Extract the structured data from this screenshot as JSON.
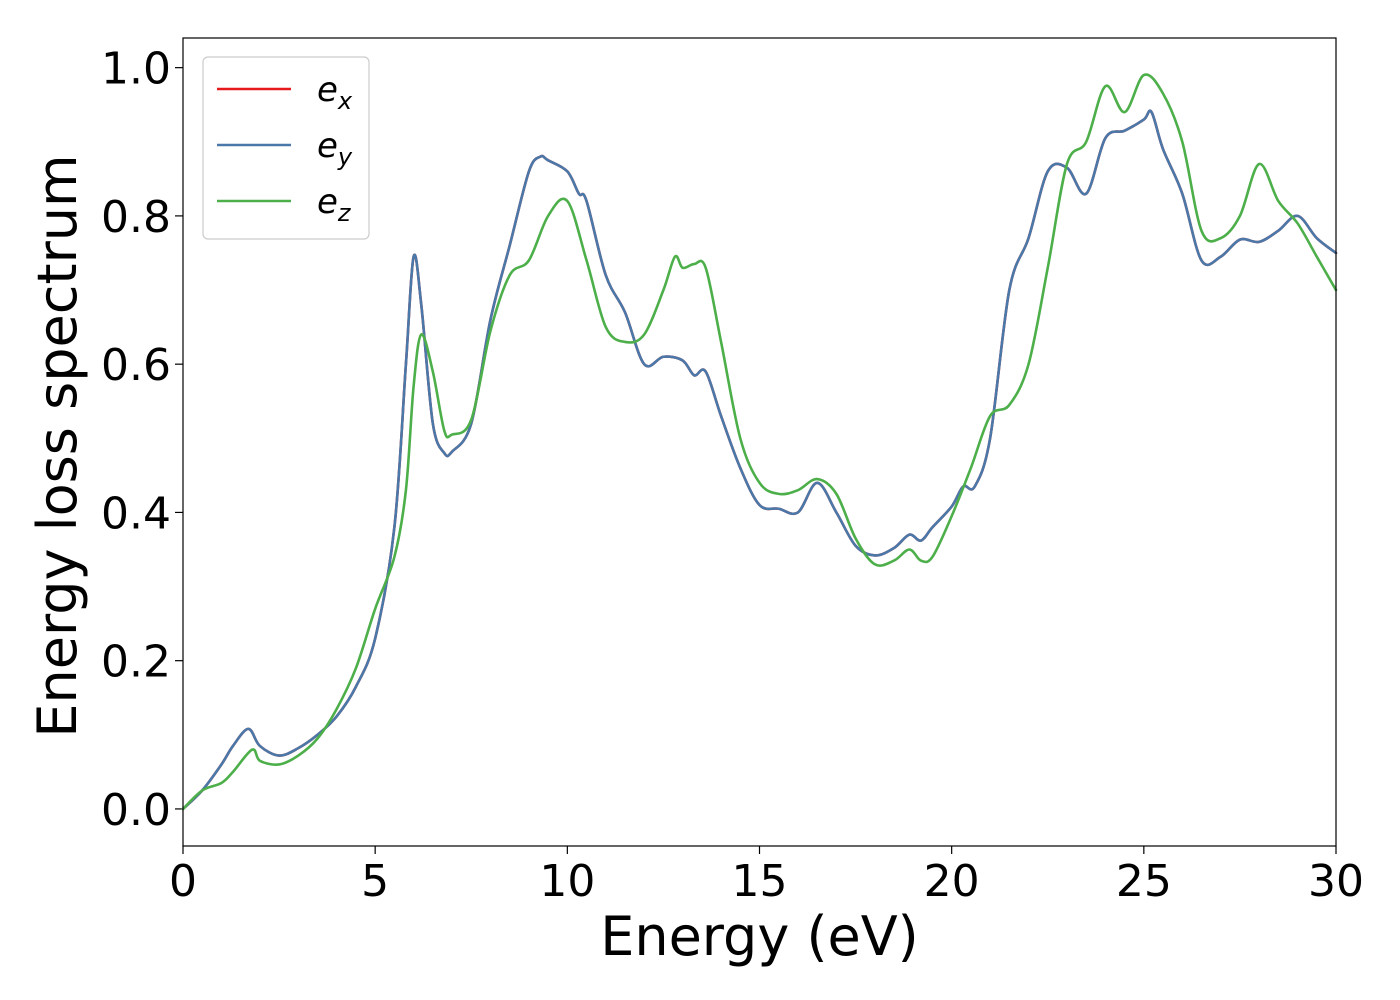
{
  "chart_data": {
    "type": "line",
    "xlabel": "Energy (eV)",
    "ylabel": "Energy loss spectrum",
    "xlim": [
      0,
      30
    ],
    "ylim": [
      -0.05,
      1.04
    ],
    "xticks": [
      "0",
      "5",
      "10",
      "15",
      "20",
      "25",
      "30"
    ],
    "yticks": [
      "0.0",
      "0.2",
      "0.4",
      "0.6",
      "0.8",
      "1.0"
    ],
    "grid": false,
    "legend_position": "top-left",
    "series": [
      {
        "name": "e_x",
        "legend": {
          "base": "e",
          "sub": "x"
        },
        "color": "#e41a1c",
        "x": [
          0,
          0.5,
          1.0,
          1.3,
          1.7,
          2.0,
          2.5,
          3.0,
          3.5,
          4.0,
          4.5,
          5.0,
          5.5,
          5.8,
          6.0,
          6.2,
          6.5,
          6.8,
          7.0,
          7.5,
          8.0,
          8.5,
          9.0,
          9.3,
          9.5,
          10.0,
          10.3,
          10.5,
          11.0,
          11.5,
          12.0,
          12.5,
          13.0,
          13.3,
          13.6,
          14.0,
          14.5,
          15.0,
          15.5,
          16.0,
          16.5,
          17.0,
          17.5,
          18.0,
          18.5,
          18.9,
          19.2,
          19.5,
          20.0,
          20.3,
          20.6,
          21.0,
          21.5,
          22.0,
          22.5,
          23.0,
          23.5,
          24.0,
          24.5,
          25.0,
          25.2,
          25.5,
          26.0,
          26.5,
          27.0,
          27.5,
          28.0,
          28.5,
          29.0,
          29.5,
          30.0
        ],
        "y": [
          0.0,
          0.025,
          0.06,
          0.085,
          0.108,
          0.085,
          0.072,
          0.082,
          0.1,
          0.125,
          0.165,
          0.23,
          0.38,
          0.6,
          0.745,
          0.68,
          0.52,
          0.48,
          0.482,
          0.52,
          0.66,
          0.76,
          0.86,
          0.88,
          0.875,
          0.86,
          0.83,
          0.82,
          0.72,
          0.67,
          0.6,
          0.61,
          0.605,
          0.585,
          0.59,
          0.53,
          0.46,
          0.41,
          0.405,
          0.4,
          0.44,
          0.4,
          0.355,
          0.342,
          0.352,
          0.37,
          0.362,
          0.38,
          0.408,
          0.435,
          0.435,
          0.5,
          0.7,
          0.77,
          0.86,
          0.865,
          0.83,
          0.905,
          0.915,
          0.93,
          0.94,
          0.89,
          0.83,
          0.74,
          0.745,
          0.768,
          0.765,
          0.78,
          0.8,
          0.77,
          0.75
        ]
      },
      {
        "name": "e_y",
        "legend": {
          "base": "e",
          "sub": "y"
        },
        "color": "#4a78a8",
        "x": [
          0,
          0.5,
          1.0,
          1.3,
          1.7,
          2.0,
          2.5,
          3.0,
          3.5,
          4.0,
          4.5,
          5.0,
          5.5,
          5.8,
          6.0,
          6.2,
          6.5,
          6.8,
          7.0,
          7.5,
          8.0,
          8.5,
          9.0,
          9.3,
          9.5,
          10.0,
          10.3,
          10.5,
          11.0,
          11.5,
          12.0,
          12.5,
          13.0,
          13.3,
          13.6,
          14.0,
          14.5,
          15.0,
          15.5,
          16.0,
          16.5,
          17.0,
          17.5,
          18.0,
          18.5,
          18.9,
          19.2,
          19.5,
          20.0,
          20.3,
          20.6,
          21.0,
          21.5,
          22.0,
          22.5,
          23.0,
          23.5,
          24.0,
          24.5,
          25.0,
          25.2,
          25.5,
          26.0,
          26.5,
          27.0,
          27.5,
          28.0,
          28.5,
          29.0,
          29.5,
          30.0
        ],
        "y": [
          0.0,
          0.025,
          0.06,
          0.085,
          0.108,
          0.085,
          0.072,
          0.082,
          0.1,
          0.125,
          0.165,
          0.23,
          0.38,
          0.6,
          0.745,
          0.68,
          0.52,
          0.48,
          0.482,
          0.52,
          0.66,
          0.76,
          0.86,
          0.88,
          0.875,
          0.86,
          0.83,
          0.82,
          0.72,
          0.67,
          0.6,
          0.61,
          0.605,
          0.585,
          0.59,
          0.53,
          0.46,
          0.41,
          0.405,
          0.4,
          0.44,
          0.4,
          0.355,
          0.342,
          0.352,
          0.37,
          0.362,
          0.38,
          0.408,
          0.435,
          0.435,
          0.5,
          0.7,
          0.77,
          0.86,
          0.865,
          0.83,
          0.905,
          0.915,
          0.93,
          0.94,
          0.89,
          0.83,
          0.74,
          0.745,
          0.768,
          0.765,
          0.78,
          0.8,
          0.77,
          0.75
        ]
      },
      {
        "name": "e_z",
        "legend": {
          "base": "e",
          "sub": "z"
        },
        "color": "#4daf4a",
        "x": [
          0,
          0.5,
          1.0,
          1.3,
          1.8,
          2.0,
          2.5,
          3.0,
          3.5,
          4.0,
          4.5,
          5.0,
          5.5,
          5.8,
          6.0,
          6.2,
          6.5,
          6.8,
          7.0,
          7.5,
          8.0,
          8.5,
          9.0,
          9.5,
          10.0,
          10.5,
          11.0,
          11.5,
          12.0,
          12.5,
          12.8,
          13.0,
          13.3,
          13.6,
          14.0,
          14.5,
          15.0,
          15.5,
          16.0,
          16.5,
          17.0,
          17.5,
          18.0,
          18.5,
          18.9,
          19.2,
          19.5,
          20.0,
          20.5,
          21.0,
          21.5,
          22.0,
          22.5,
          23.0,
          23.5,
          24.0,
          24.5,
          25.0,
          25.5,
          26.0,
          26.5,
          27.0,
          27.5,
          28.0,
          28.5,
          29.0,
          29.5,
          30.0
        ],
        "y": [
          0.0,
          0.025,
          0.035,
          0.05,
          0.08,
          0.065,
          0.06,
          0.072,
          0.095,
          0.135,
          0.19,
          0.27,
          0.34,
          0.43,
          0.57,
          0.64,
          0.59,
          0.51,
          0.505,
          0.525,
          0.645,
          0.72,
          0.74,
          0.8,
          0.82,
          0.74,
          0.65,
          0.63,
          0.64,
          0.7,
          0.745,
          0.73,
          0.735,
          0.73,
          0.63,
          0.5,
          0.44,
          0.425,
          0.43,
          0.445,
          0.425,
          0.365,
          0.33,
          0.335,
          0.35,
          0.335,
          0.34,
          0.395,
          0.46,
          0.53,
          0.545,
          0.6,
          0.73,
          0.87,
          0.9,
          0.975,
          0.94,
          0.99,
          0.965,
          0.9,
          0.78,
          0.77,
          0.8,
          0.87,
          0.82,
          0.79,
          0.745,
          0.7
        ]
      }
    ]
  }
}
